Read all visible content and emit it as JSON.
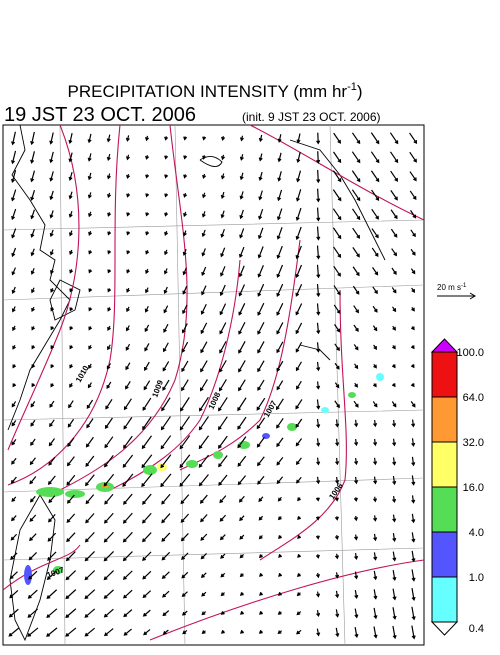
{
  "header": {
    "title": "PRECIPITATION INTENSITY (mm hr",
    "title_sup": "-1",
    "title_end": ")",
    "valid_time": "19 JST 23 OCT. 2006",
    "init_time": "(init. 9 JST 23 OCT. 2006)"
  },
  "wind_scale": {
    "label": "20 m s",
    "label_sup": "-1"
  },
  "isobar_labels": [
    "1010",
    "1009",
    "1008",
    "1007",
    "1006",
    "1007"
  ],
  "colorbar": {
    "levels": [
      {
        "value": 100,
        "label": "100.0"
      },
      {
        "value": 64,
        "label": "64.0"
      },
      {
        "value": 32,
        "label": "32.0"
      },
      {
        "value": 16,
        "label": "16.0"
      },
      {
        "value": 4,
        "label": "4.0"
      },
      {
        "value": 1,
        "label": "1.0"
      },
      {
        "value": 0.4,
        "label": "0.4"
      }
    ],
    "colors": [
      "#cc00ff",
      "#ee1111",
      "#ff9933",
      "#ffff66",
      "#55dd55",
      "#5555ff",
      "#66ffff",
      "#ffffff"
    ]
  }
}
